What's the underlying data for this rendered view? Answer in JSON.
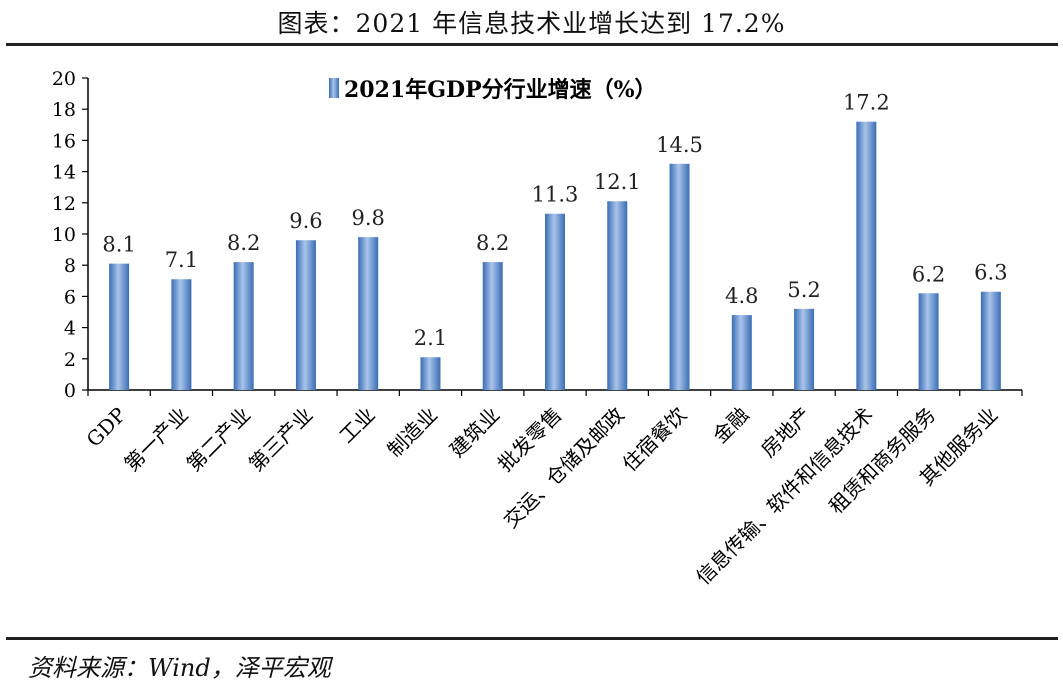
{
  "header": {
    "title": "图表：2021 年信息技术业增长达到 17.2%"
  },
  "footer": {
    "source": "资料来源：Wind，泽平宏观"
  },
  "colors": {
    "bar_fill": "#4e7fc1",
    "bar_highlight": "#a9c4ea",
    "axis": "#000000"
  },
  "chart_data": {
    "type": "bar",
    "title": "2021年GDP分行业增速（%）",
    "legend": {
      "label": "2021年GDP分行业增速（%）",
      "position": "top-center"
    },
    "categories": [
      "GDP",
      "第一产业",
      "第二产业",
      "第三产业",
      "工业",
      "制造业",
      "建筑业",
      "批发零售",
      "交运、仓储及邮政",
      "住宿餐饮",
      "金融",
      "房地产",
      "信息传输、软件和信息技术",
      "租赁和商务服务",
      "其他服务业"
    ],
    "values": [
      8.1,
      7.1,
      8.2,
      9.6,
      9.8,
      2.1,
      8.2,
      11.3,
      12.1,
      14.5,
      4.8,
      5.2,
      17.2,
      6.2,
      6.3
    ],
    "value_labels": [
      "8.1",
      "7.1",
      "8.2",
      "9.6",
      "9.8",
      "2.1",
      "8.2",
      "11.3",
      "12.1",
      "14.5",
      "4.8",
      "5.2",
      "17.2",
      "6.2",
      "6.3"
    ],
    "yticks": [
      "0",
      "2",
      "4",
      "6",
      "8",
      "10",
      "12",
      "14",
      "16",
      "18",
      "20"
    ],
    "ylim": [
      0,
      20
    ],
    "xlabel": "",
    "ylabel": "",
    "grid": false
  }
}
